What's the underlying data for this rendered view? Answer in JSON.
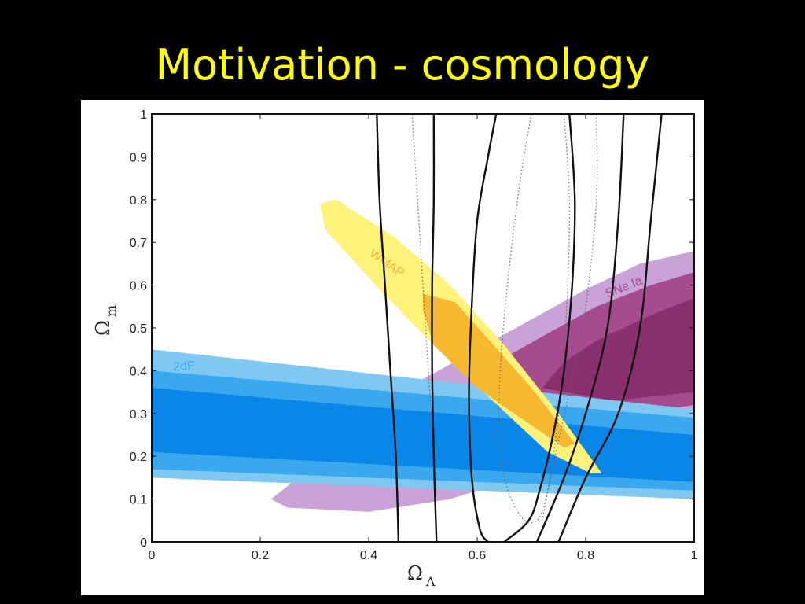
{
  "slide": {
    "title": "Motivation - cosmology"
  },
  "colors": {
    "background": "#000000",
    "title": "#ffff00",
    "twodf_outer": "#7ec8f2",
    "twodf_mid": "#39a8ee",
    "twodf_inner": "#0a86e8",
    "snia_outer": "#c9a2d8",
    "snia_inner": "#a64b8e",
    "snia_core": "#8a2f6e",
    "wmap_outer": "#fff27a",
    "wmap_inner": "#f5b82e",
    "contour_line": "#111111"
  },
  "chart_data": {
    "type": "contour",
    "xlabel": "Ω",
    "xlabel_sub": "Λ",
    "ylabel": "Ω",
    "ylabel_sub": "m",
    "xlim": [
      0,
      1
    ],
    "ylim": [
      0,
      1
    ],
    "xticks": [
      0,
      0.2,
      0.4,
      0.6,
      0.8,
      1
    ],
    "xtick_labels": [
      "0",
      "0.2",
      "0.4",
      "0.6",
      "0.8",
      "1"
    ],
    "yticks": [
      0,
      0.1,
      0.2,
      0.3,
      0.4,
      0.5,
      0.6,
      0.7,
      0.8,
      0.9,
      1
    ],
    "ytick_labels": [
      "0",
      "0.1",
      "0.2",
      "0.3",
      "0.4",
      "0.5",
      "0.6",
      "0.7",
      "0.8",
      "0.9",
      "1"
    ],
    "grid": false,
    "regions": [
      {
        "name": "SNe Ia",
        "label": "SNe Ia",
        "label_at": [
          0.84,
          0.57
        ],
        "label_angle": -22,
        "levels": [
          {
            "color": "#c9a2d8",
            "polygon": [
              [
                0.22,
                0.1
              ],
              [
                0.25,
                0.08
              ],
              [
                0.4,
                0.07
              ],
              [
                0.55,
                0.1
              ],
              [
                0.7,
                0.16
              ],
              [
                0.85,
                0.22
              ],
              [
                1,
                0.26
              ],
              [
                1,
                0.68
              ],
              [
                0.9,
                0.65
              ],
              [
                0.8,
                0.59
              ],
              [
                0.7,
                0.52
              ],
              [
                0.6,
                0.45
              ],
              [
                0.5,
                0.38
              ],
              [
                0.4,
                0.28
              ],
              [
                0.3,
                0.18
              ]
            ]
          },
          {
            "color": "#a64b8e",
            "polygon": [
              [
                0.62,
                0.38
              ],
              [
                0.75,
                0.3
              ],
              [
                0.9,
                0.3
              ],
              [
                1,
                0.32
              ],
              [
                1,
                0.63
              ],
              [
                0.92,
                0.6
              ],
              [
                0.82,
                0.55
              ],
              [
                0.72,
                0.48
              ],
              [
                0.65,
                0.43
              ]
            ]
          },
          {
            "color": "#8a2f6e",
            "polygon": [
              [
                0.72,
                0.36
              ],
              [
                0.85,
                0.33
              ],
              [
                1,
                0.35
              ],
              [
                1,
                0.57
              ],
              [
                0.92,
                0.53
              ],
              [
                0.82,
                0.47
              ],
              [
                0.76,
                0.42
              ]
            ]
          }
        ]
      },
      {
        "name": "2dF",
        "label": "2dF",
        "label_at": [
          0.04,
          0.4
        ],
        "label_angle": -3,
        "levels": [
          {
            "color": "#7ec8f2",
            "polygon": [
              [
                0,
                0.45
              ],
              [
                1,
                0.31
              ],
              [
                1,
                0.1
              ],
              [
                0,
                0.15
              ]
            ]
          },
          {
            "color": "#39a8ee",
            "polygon": [
              [
                0,
                0.4
              ],
              [
                1,
                0.29
              ],
              [
                1,
                0.12
              ],
              [
                0,
                0.17
              ]
            ]
          },
          {
            "color": "#0a86e8",
            "polygon": [
              [
                0,
                0.36
              ],
              [
                1,
                0.25
              ],
              [
                1,
                0.14
              ],
              [
                0,
                0.21
              ]
            ]
          }
        ]
      },
      {
        "name": "WMAP",
        "label": "WMAP",
        "label_at": [
          0.4,
          0.67
        ],
        "label_angle": 35,
        "levels": [
          {
            "color": "#fff27a",
            "polygon": [
              [
                0.31,
                0.79
              ],
              [
                0.34,
                0.8
              ],
              [
                0.45,
                0.71
              ],
              [
                0.55,
                0.6
              ],
              [
                0.65,
                0.46
              ],
              [
                0.75,
                0.3
              ],
              [
                0.83,
                0.16
              ],
              [
                0.81,
                0.16
              ],
              [
                0.73,
                0.21
              ],
              [
                0.62,
                0.34
              ],
              [
                0.52,
                0.46
              ],
              [
                0.42,
                0.59
              ],
              [
                0.32,
                0.73
              ]
            ]
          },
          {
            "color": "#f5b82e",
            "polygon": [
              [
                0.5,
                0.58
              ],
              [
                0.56,
                0.56
              ],
              [
                0.63,
                0.46
              ],
              [
                0.7,
                0.36
              ],
              [
                0.78,
                0.23
              ],
              [
                0.76,
                0.22
              ],
              [
                0.68,
                0.29
              ],
              [
                0.6,
                0.36
              ],
              [
                0.52,
                0.46
              ],
              [
                0.5,
                0.54
              ]
            ]
          }
        ]
      }
    ],
    "solid_contours": [
      [
        [
          0.415,
          1
        ],
        [
          0.42,
          0.8
        ],
        [
          0.43,
          0.6
        ],
        [
          0.44,
          0.4
        ],
        [
          0.45,
          0.2
        ],
        [
          0.455,
          0
        ]
      ],
      [
        [
          0.52,
          1
        ],
        [
          0.52,
          0.8
        ],
        [
          0.517,
          0.6
        ],
        [
          0.517,
          0.4
        ],
        [
          0.52,
          0.2
        ],
        [
          0.525,
          0
        ]
      ],
      [
        [
          0.635,
          1
        ],
        [
          0.62,
          0.9
        ],
        [
          0.6,
          0.75
        ],
        [
          0.59,
          0.55
        ],
        [
          0.585,
          0.35
        ],
        [
          0.59,
          0.15
        ],
        [
          0.605,
          0.03
        ],
        [
          0.62,
          0
        ]
      ],
      [
        [
          0.77,
          1
        ],
        [
          0.78,
          0.8
        ],
        [
          0.775,
          0.6
        ],
        [
          0.76,
          0.4
        ],
        [
          0.74,
          0.25
        ],
        [
          0.715,
          0.12
        ],
        [
          0.695,
          0.05
        ],
        [
          0.65,
          0
        ]
      ],
      [
        [
          0.87,
          1
        ],
        [
          0.86,
          0.75
        ],
        [
          0.84,
          0.5
        ],
        [
          0.8,
          0.3
        ],
        [
          0.76,
          0.15
        ],
        [
          0.71,
          0
        ]
      ],
      [
        [
          0.94,
          1
        ],
        [
          0.92,
          0.75
        ],
        [
          0.9,
          0.5
        ],
        [
          0.86,
          0.3
        ],
        [
          0.8,
          0.15
        ],
        [
          0.75,
          0
        ]
      ]
    ],
    "dotted_contours": [
      [
        [
          0.48,
          1
        ],
        [
          0.49,
          0.8
        ],
        [
          0.5,
          0.6
        ],
        [
          0.51,
          0.4
        ],
        [
          0.52,
          0.2
        ],
        [
          0.525,
          0
        ]
      ],
      [
        [
          0.7,
          1
        ],
        [
          0.68,
          0.85
        ],
        [
          0.66,
          0.65
        ],
        [
          0.645,
          0.45
        ],
        [
          0.64,
          0.28
        ],
        [
          0.65,
          0.15
        ],
        [
          0.68,
          0.06
        ],
        [
          0.71,
          0.05
        ],
        [
          0.73,
          0.12
        ],
        [
          0.75,
          0.3
        ],
        [
          0.765,
          0.55
        ],
        [
          0.77,
          0.8
        ],
        [
          0.76,
          1
        ]
      ],
      [
        [
          0.82,
          1
        ],
        [
          0.82,
          0.8
        ],
        [
          0.8,
          0.55
        ],
        [
          0.77,
          0.35
        ],
        [
          0.74,
          0.18
        ],
        [
          0.72,
          0.05
        ]
      ]
    ]
  }
}
